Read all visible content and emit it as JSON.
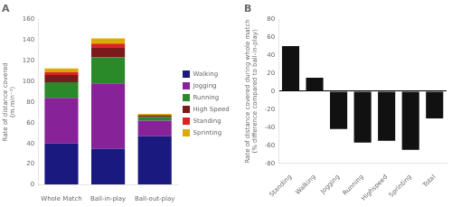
{
  "chart_data": [
    {
      "type": "bar",
      "title": "A",
      "stacked": true,
      "categories": [
        "Whole Match",
        "Ball-in-play",
        "Ball-out-play"
      ],
      "series": [
        {
          "name": "Walking",
          "color": "#191980",
          "values": [
            40.0,
            35.0,
            47.0
          ]
        },
        {
          "name": "Jogging",
          "color": "#882299",
          "values": [
            44.0,
            63.0,
            15.0
          ]
        },
        {
          "name": "Running",
          "color": "#2a8a2a",
          "values": [
            15.0,
            25.0,
            3.5
          ]
        },
        {
          "name": "High Speed",
          "color": "#7a1a1a",
          "values": [
            7.0,
            10.0,
            1.5
          ]
        },
        {
          "name": "Standing",
          "color": "#dd2222",
          "values": [
            3.0,
            3.5,
            0.5
          ]
        },
        {
          "name": "Sprinting",
          "color": "#ddaa00",
          "values": [
            3.5,
            5.0,
            1.0
          ]
        }
      ],
      "ylabel": "Rate of distance covered\n(m.min⁻¹)",
      "ylim": [
        0,
        160
      ],
      "yticks": [
        0,
        20,
        40,
        60,
        80,
        100,
        120,
        140,
        160
      ],
      "legend": "right",
      "grid": false
    },
    {
      "type": "bar",
      "title": "B",
      "categories": [
        "Standing",
        "Walking",
        "Jogging",
        "Running",
        "Highspeed",
        "Sprinting",
        "Total"
      ],
      "values": [
        50,
        15,
        -42,
        -57,
        -55,
        -65,
        -30
      ],
      "color": "#111111",
      "ylabel": "Rate of distance covered during whole match\n(% difference compared to ball-in-play)",
      "ylim": [
        -80,
        80
      ],
      "yticks": [
        -80,
        -60,
        -40,
        -20,
        0,
        20,
        40,
        60,
        80
      ],
      "grid": false
    }
  ]
}
